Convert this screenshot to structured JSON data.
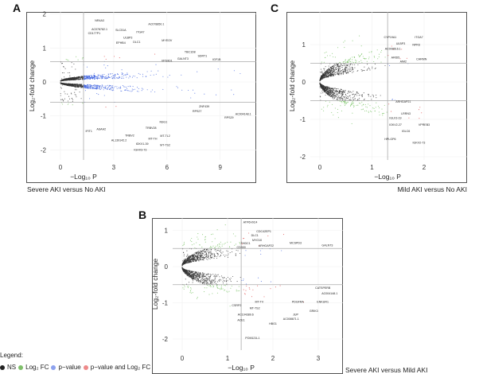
{
  "legend": {
    "title": "Legend:",
    "items": [
      {
        "label": "NS",
        "color": "#222222"
      },
      {
        "label": "Log₂ FC",
        "color": "#7fbf6a"
      },
      {
        "label": "p−value",
        "color": "#8da2ee"
      },
      {
        "label": "p−value and Log₂ FC",
        "color": "#ee8a8a"
      }
    ]
  },
  "colors": {
    "ns": "#333333",
    "fc": "#6fbf5a",
    "p": "#3f63e0",
    "both": "#e04848",
    "threshold": "#aaaaaa",
    "frame": "#555555"
  },
  "chart_data": [
    {
      "id": "A",
      "letter": "A",
      "type": "scatter",
      "caption": "Severe AKI versus No AKI",
      "xlabel": "−Log₁₀ P",
      "ylabel": "Log₂-fold change",
      "xlim": [
        -0.6,
        11
      ],
      "ylim": [
        -2.3,
        2.0
      ],
      "xticks": [
        0,
        3,
        6,
        9
      ],
      "yticks": [
        2,
        1,
        0,
        -1,
        -2
      ],
      "p_threshold": 1.3,
      "fc_threshold": 0.6,
      "max_x": 11,
      "spread": 0.09,
      "n_points": 1600,
      "genes": [
        {
          "name": "NR4A3",
          "x": 2.2,
          "y": 1.78
        },
        {
          "name": "AC078850.1",
          "x": 5.4,
          "y": 1.68
        },
        {
          "name": "AC078782.1",
          "x": 2.2,
          "y": 1.52
        },
        {
          "name": "SLC51A",
          "x": 3.4,
          "y": 1.5
        },
        {
          "name": "ITGA7",
          "x": 4.5,
          "y": 1.44
        },
        {
          "name": "CD177P1",
          "x": 1.9,
          "y": 1.4
        },
        {
          "name": "ULBP3",
          "x": 3.8,
          "y": 1.28
        },
        {
          "name": "EPHB4",
          "x": 3.4,
          "y": 1.18
        },
        {
          "name": "DLC1",
          "x": 4.3,
          "y": 1.15
        },
        {
          "name": "MYEOV",
          "x": 6.0,
          "y": 1.2
        },
        {
          "name": "TBC1D8",
          "x": 7.3,
          "y": 0.85
        },
        {
          "name": "SDRT1",
          "x": 8.0,
          "y": 0.74
        },
        {
          "name": "GALNT3",
          "x": 6.9,
          "y": 0.66
        },
        {
          "name": "IGF1B",
          "x": 8.8,
          "y": 0.63
        },
        {
          "name": "VPS9D1",
          "x": 6.0,
          "y": 0.6
        },
        {
          "name": "ZNF439",
          "x": 8.1,
          "y": -0.75
        },
        {
          "name": "RPS27",
          "x": 7.7,
          "y": -0.89
        },
        {
          "name": "RPS29",
          "x": 9.5,
          "y": -1.08
        },
        {
          "name": "AC004148.1",
          "x": 10.3,
          "y": -0.97
        },
        {
          "name": "NSG1",
          "x": 5.8,
          "y": -1.21
        },
        {
          "name": "TRBV28",
          "x": 5.1,
          "y": -1.38
        },
        {
          "name": "TRBV2",
          "x": 3.9,
          "y": -1.6
        },
        {
          "name": "MT-TL2",
          "x": 5.9,
          "y": -1.62
        },
        {
          "name": "MT-TH",
          "x": 5.2,
          "y": -1.7
        },
        {
          "name": "IGKV1-39",
          "x": 4.6,
          "y": -1.85
        },
        {
          "name": "MT-TS2",
          "x": 5.9,
          "y": -1.88
        },
        {
          "name": "IGHV3-73",
          "x": 4.5,
          "y": -2.02
        },
        {
          "name": "ASAH2",
          "x": 2.3,
          "y": -1.42
        },
        {
          "name": "IFIT1",
          "x": 1.6,
          "y": -1.48
        },
        {
          "name": "AL139142.2",
          "x": 3.3,
          "y": -1.74
        }
      ]
    },
    {
      "id": "C",
      "letter": "C",
      "type": "scatter",
      "caption": "Mild AKI versus No AKI",
      "xlabel": "−Log₁₀ P",
      "ylabel": "Log₂-fold change",
      "xlim": [
        -0.5,
        2.85
      ],
      "ylim": [
        -2.1,
        1.85
      ],
      "xticks": [
        0,
        1,
        2
      ],
      "yticks": [
        1,
        0,
        -1,
        -2
      ],
      "p_threshold": 1.3,
      "fc_threshold": 0.5,
      "max_x": 2.8,
      "spread": 0.55,
      "n_points": 1400,
      "genes": [
        {
          "name": "CYP19A1",
          "x": 1.35,
          "y": 1.17
        },
        {
          "name": "ITGA7",
          "x": 1.9,
          "y": 1.17
        },
        {
          "name": "ULBP3",
          "x": 1.55,
          "y": 1.0
        },
        {
          "name": "NPR3",
          "x": 1.85,
          "y": 0.97
        },
        {
          "name": "AC008616.1",
          "x": 1.4,
          "y": 0.86
        },
        {
          "name": "CARMN",
          "x": 1.95,
          "y": 0.59
        },
        {
          "name": "AIM2",
          "x": 1.6,
          "y": 0.52
        },
        {
          "name": "ARID5",
          "x": 1.45,
          "y": 0.58
        },
        {
          "name": "ARHGAP21",
          "x": 1.6,
          "y": -0.55
        },
        {
          "name": "LRRN3",
          "x": 1.65,
          "y": -0.87
        },
        {
          "name": "IGLV3-19",
          "x": 1.45,
          "y": -0.99
        },
        {
          "name": "IGKV2-27",
          "x": 1.45,
          "y": -1.17
        },
        {
          "name": "VPREB3",
          "x": 2.0,
          "y": -1.17
        },
        {
          "name": "IGLC6",
          "x": 1.65,
          "y": -1.34
        },
        {
          "name": "HPLGP6",
          "x": 1.35,
          "y": -1.55
        },
        {
          "name": "IGKV2-73",
          "x": 1.9,
          "y": -1.65
        }
      ]
    },
    {
      "id": "B",
      "letter": "B",
      "type": "scatter",
      "caption": "Severe AKI versus Mild AKI",
      "xlabel": "−Log₁₀ P",
      "ylabel": "Log₂-fold change",
      "xlim": [
        -0.25,
        3.55
      ],
      "ylim": [
        -2.3,
        1.3
      ],
      "xticks": [
        0,
        1,
        2,
        3
      ],
      "yticks": [
        1,
        0,
        -1,
        -2
      ],
      "p_threshold": 1.3,
      "fc_threshold": 0.5,
      "max_x": 3.35,
      "spread": 0.45,
      "n_points": 1400,
      "genes": [
        {
          "name": "ATP6V0C4",
          "x": 1.5,
          "y": 1.2
        },
        {
          "name": "CDC42EP1",
          "x": 1.8,
          "y": 0.95
        },
        {
          "name": "DLC1",
          "x": 1.6,
          "y": 0.88
        },
        {
          "name": "MYO10",
          "x": 1.65,
          "y": 0.75
        },
        {
          "name": "FHDC1",
          "x": 1.45,
          "y": 0.66
        },
        {
          "name": "ARHGAP22",
          "x": 1.85,
          "y": 0.55
        },
        {
          "name": "CD300",
          "x": 1.3,
          "y": 0.55
        },
        {
          "name": "MCSPD3",
          "x": 2.5,
          "y": 0.63
        },
        {
          "name": "GALNT3",
          "x": 3.2,
          "y": 0.56
        },
        {
          "name": "CATSPERB",
          "x": 3.1,
          "y": -0.62
        },
        {
          "name": "AC004148.1",
          "x": 3.25,
          "y": -0.72
        },
        {
          "name": "ENKUR1",
          "x": 3.1,
          "y": -1.0
        },
        {
          "name": "GRIK3",
          "x": 2.9,
          "y": -1.25
        },
        {
          "name": "JUP",
          "x": 2.5,
          "y": -1.35
        },
        {
          "name": "AC008671.1",
          "x": 2.4,
          "y": -1.38
        },
        {
          "name": "HBG1",
          "x": 2.0,
          "y": -1.6
        },
        {
          "name": "ACE1",
          "x": 1.3,
          "y": -1.5
        },
        {
          "name": "AC104389.6",
          "x": 1.4,
          "y": -1.35
        },
        {
          "name": "MT-TS2",
          "x": 1.6,
          "y": -1.18
        },
        {
          "name": "MT-TV",
          "x": 1.7,
          "y": -1.0
        },
        {
          "name": "CSRP2",
          "x": 1.2,
          "y": -1.1
        },
        {
          "name": "PDGFRA",
          "x": 2.55,
          "y": -1.0
        },
        {
          "name": "POM121L1",
          "x": 1.55,
          "y": -2.0
        }
      ]
    }
  ]
}
